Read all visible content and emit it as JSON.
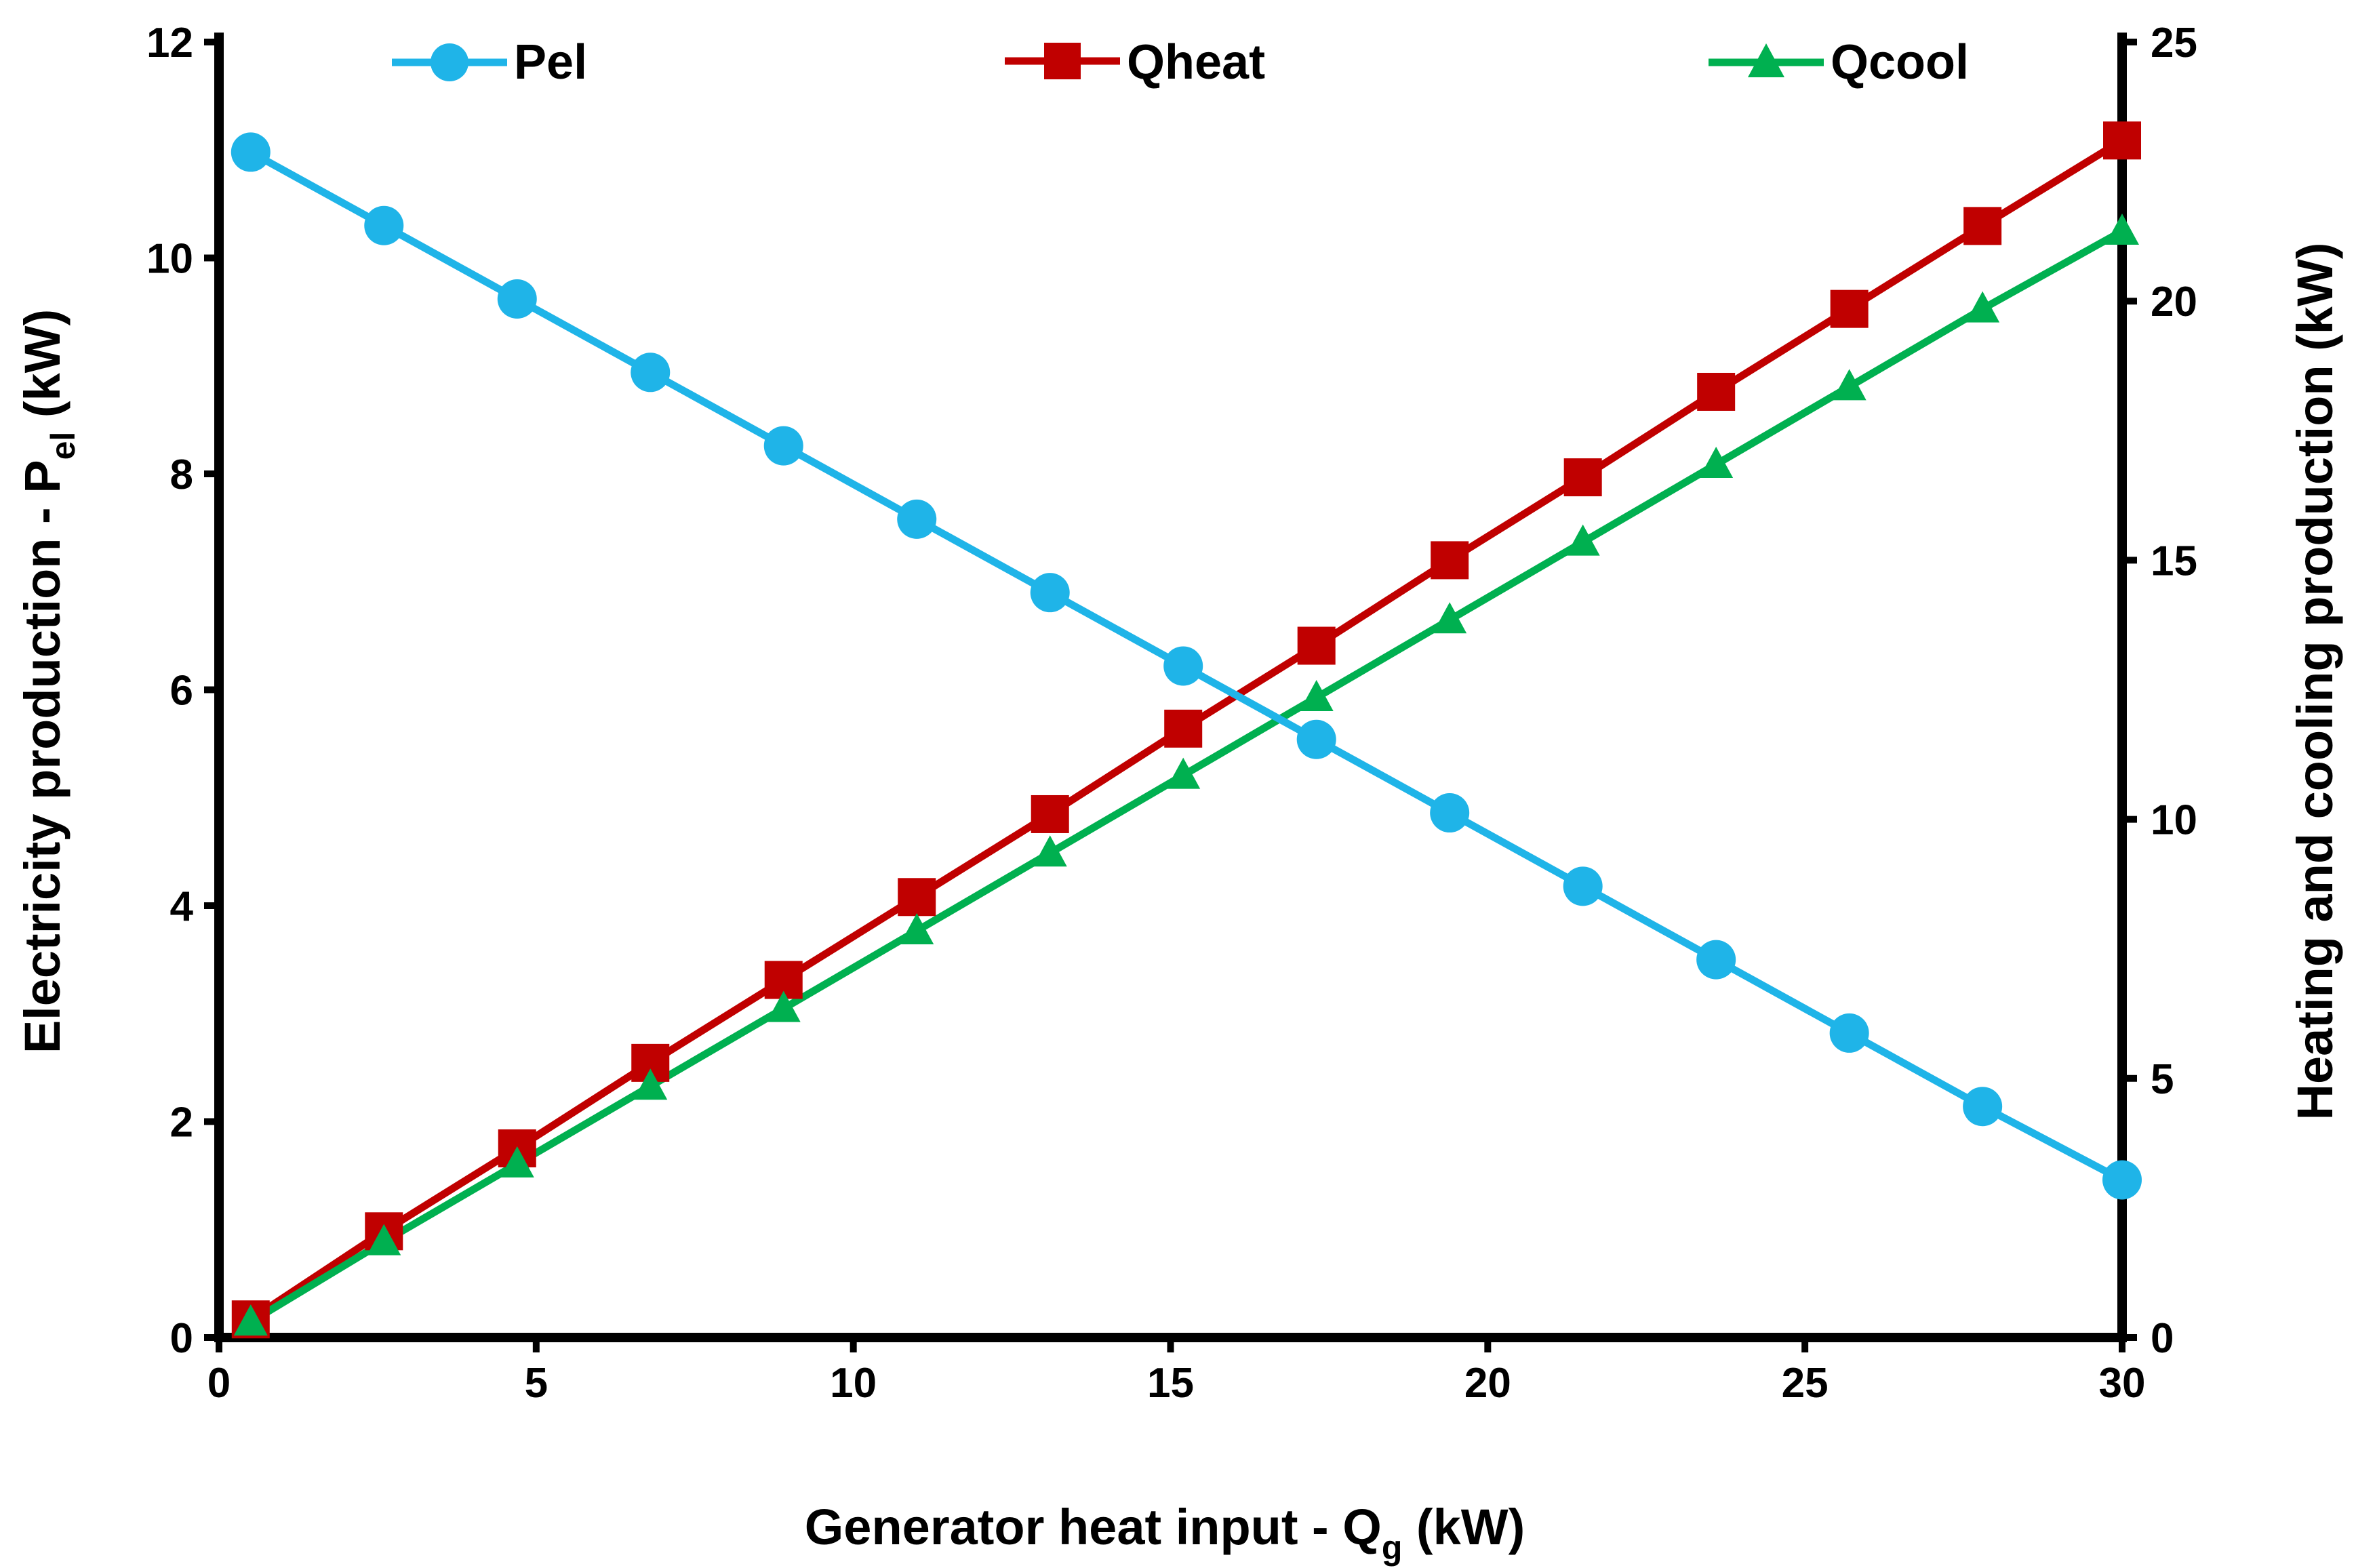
{
  "chart_data": {
    "type": "line",
    "x": [
      0.5,
      2.6,
      4.7,
      6.8,
      8.9,
      11.0,
      13.1,
      15.2,
      17.3,
      19.4,
      21.5,
      23.6,
      25.7,
      27.8,
      30.0
    ],
    "series": [
      {
        "name": "Pel",
        "axis": "left",
        "color": "#1FB4E8",
        "marker": "circle",
        "values": [
          10.98,
          10.3,
          9.62,
          8.94,
          8.26,
          7.58,
          6.9,
          6.22,
          5.54,
          4.86,
          4.18,
          3.5,
          2.82,
          2.14,
          1.46
        ]
      },
      {
        "name": "Qheat",
        "axis": "right",
        "color": "#C00000",
        "marker": "square",
        "values": [
          0.35,
          2.05,
          3.65,
          5.3,
          6.9,
          8.5,
          10.1,
          11.75,
          13.35,
          15.0,
          16.6,
          18.25,
          19.85,
          21.45,
          23.1
        ]
      },
      {
        "name": "Qcool",
        "axis": "right",
        "color": "#00B050",
        "marker": "triangle",
        "values": [
          0.3,
          1.85,
          3.35,
          4.85,
          6.35,
          7.85,
          9.35,
          10.85,
          12.35,
          13.85,
          15.35,
          16.85,
          18.35,
          19.85,
          21.35
        ]
      }
    ],
    "xlim": [
      0,
      30
    ],
    "ylim_left": [
      0,
      12
    ],
    "ylim_right": [
      0,
      25
    ],
    "xticks": [
      "0",
      "5",
      "10",
      "15",
      "20",
      "25",
      "30"
    ],
    "yticks_left": [
      "0",
      "2",
      "4",
      "6",
      "8",
      "10",
      "12"
    ],
    "yticks_right": [
      "0",
      "5",
      "10",
      "15",
      "20",
      "25"
    ],
    "xlabel": {
      "main": "Generator heat input - Q",
      "sub": "g",
      "unit": " (kW)"
    },
    "ylabel_left": {
      "main": "Electricity production - P",
      "sub": "el",
      "unit": " (kW)"
    },
    "ylabel_right": "Heating and cooling production (kW)",
    "legend_position": "top",
    "grid": false
  }
}
